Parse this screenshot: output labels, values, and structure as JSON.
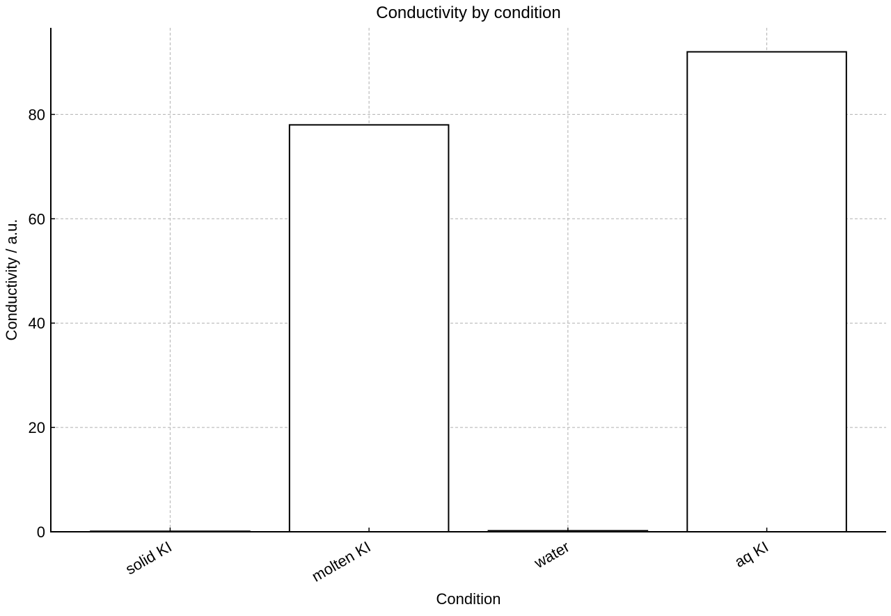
{
  "chart_data": {
    "type": "bar",
    "title": "Conductivity by condition",
    "xlabel": "Condition",
    "ylabel": "Conductivity / a.u.",
    "categories": [
      "solid KI",
      "molten KI",
      "water",
      "aq KI"
    ],
    "values": [
      0.1,
      78,
      0.2,
      92
    ],
    "ylim": [
      0,
      96.6
    ],
    "yticks": [
      0,
      20,
      40,
      60,
      80
    ],
    "grid": true,
    "legend": "none",
    "bar_fill": "#ffffff",
    "bar_edge": "#000000",
    "grid_color": "#b0b0b0"
  }
}
